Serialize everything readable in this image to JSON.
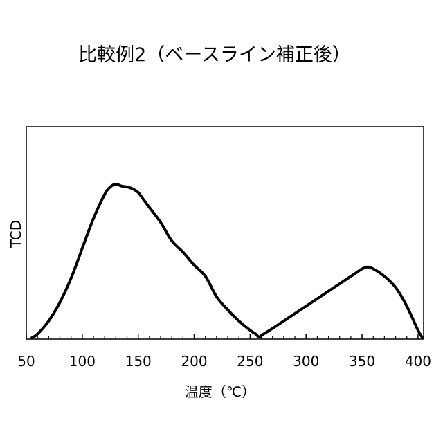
{
  "chart_data": {
    "type": "line",
    "title": "比較例2（ベースライン補正後）",
    "xlabel": "温度（℃）",
    "ylabel": "TCD",
    "xlim": [
      50,
      405
    ],
    "ylim": [
      0,
      1
    ],
    "y_ticks_shown": false,
    "x_ticks": [
      50,
      100,
      150,
      200,
      250,
      300,
      350,
      400
    ],
    "x_tick_labels": [
      "50",
      "100",
      "150",
      "200",
      "250",
      "300",
      "350",
      "400"
    ],
    "grid": false,
    "legend": "none",
    "series": [
      {
        "color": "#000000",
        "x": [
          55,
          60,
          70,
          80,
          90,
          100,
          110,
          120,
          125,
          130,
          135,
          140,
          145,
          150,
          155,
          160,
          170,
          180,
          190,
          200,
          210,
          220,
          230,
          240,
          250,
          255,
          258,
          262,
          270,
          280,
          290,
          300,
          310,
          320,
          330,
          340,
          345,
          350,
          355,
          360,
          370,
          380,
          390,
          400,
          404
        ],
        "y": [
          0.0,
          0.02,
          0.09,
          0.19,
          0.32,
          0.48,
          0.64,
          0.77,
          0.81,
          0.825,
          0.815,
          0.81,
          0.8,
          0.78,
          0.74,
          0.7,
          0.62,
          0.52,
          0.46,
          0.39,
          0.33,
          0.22,
          0.15,
          0.09,
          0.04,
          0.02,
          0.005,
          0.02,
          0.05,
          0.09,
          0.13,
          0.17,
          0.21,
          0.25,
          0.29,
          0.33,
          0.35,
          0.37,
          0.38,
          0.37,
          0.33,
          0.27,
          0.17,
          0.04,
          0.0
        ]
      }
    ]
  }
}
